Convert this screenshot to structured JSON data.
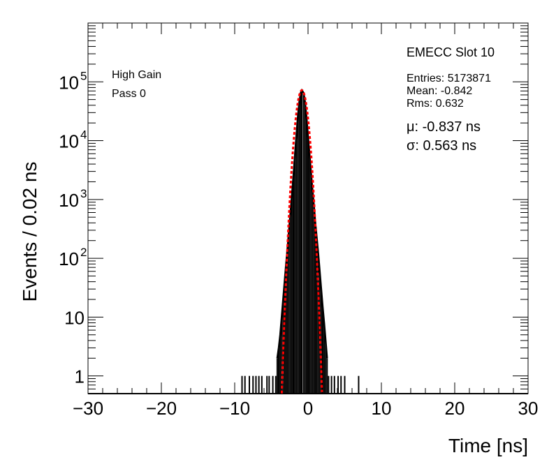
{
  "chart_data": {
    "type": "histogram",
    "ylabel": "Events / 0.02 ns",
    "xlabel": "Time [ns]",
    "xlim": [
      -30,
      30
    ],
    "ylim": [
      0.5,
      1000000
    ],
    "yscale": "log",
    "x_ticks": [
      -30,
      -20,
      -10,
      0,
      10,
      20,
      30
    ],
    "x_tick_labels": [
      "−30",
      "−20",
      "−10",
      "0",
      "10",
      "20",
      "30"
    ],
    "y_ticks": [
      1,
      10,
      100,
      1000,
      10000,
      100000
    ],
    "annotations": {
      "left": [
        "High Gain",
        "Pass 0"
      ],
      "title": "EMECC Slot 10",
      "stats": [
        "Entries: 5173871",
        "Mean: -0.842",
        "Rms: 0.632"
      ],
      "fit": [
        "μ: -0.837 ns",
        "σ: 0.563 ns"
      ]
    },
    "series": [
      {
        "kind": "histogram",
        "color": "#000000",
        "points": [
          [
            -9.0,
            1
          ],
          [
            -8.6,
            1
          ],
          [
            -8.0,
            1
          ],
          [
            -7.5,
            1
          ],
          [
            -7.1,
            1
          ],
          [
            -6.7,
            1
          ],
          [
            -6.3,
            1
          ],
          [
            -5.6,
            1
          ],
          [
            -5.3,
            1
          ],
          [
            -4.8,
            1
          ],
          [
            -4.4,
            1
          ],
          [
            -4.2,
            2
          ],
          [
            -4.0,
            3
          ],
          [
            -3.8,
            5
          ],
          [
            -3.6,
            10
          ],
          [
            -3.4,
            20
          ],
          [
            -3.2,
            40
          ],
          [
            -3.0,
            80
          ],
          [
            -2.8,
            150
          ],
          [
            -2.6,
            300
          ],
          [
            -2.4,
            600
          ],
          [
            -2.2,
            1200
          ],
          [
            -2.0,
            2500
          ],
          [
            -1.8,
            5500
          ],
          [
            -1.6,
            12000
          ],
          [
            -1.4,
            25000
          ],
          [
            -1.2,
            45000
          ],
          [
            -1.0,
            65000
          ],
          [
            -0.84,
            72000
          ],
          [
            -0.6,
            65000
          ],
          [
            -0.4,
            45000
          ],
          [
            -0.2,
            25000
          ],
          [
            0.0,
            12000
          ],
          [
            0.2,
            6000
          ],
          [
            0.4,
            3000
          ],
          [
            0.6,
            1500
          ],
          [
            0.8,
            800
          ],
          [
            1.0,
            400
          ],
          [
            1.2,
            220
          ],
          [
            1.4,
            120
          ],
          [
            1.6,
            60
          ],
          [
            1.8,
            30
          ],
          [
            2.0,
            15
          ],
          [
            2.2,
            8
          ],
          [
            2.4,
            4
          ],
          [
            2.6,
            2
          ],
          [
            2.8,
            1
          ],
          [
            3.2,
            1
          ],
          [
            3.6,
            1
          ],
          [
            4.1,
            1
          ],
          [
            4.5,
            1
          ],
          [
            5.0,
            1
          ],
          [
            6.9,
            1
          ]
        ]
      },
      {
        "kind": "gaussian_fit",
        "color": "#ff0000",
        "mu": -0.837,
        "sigma": 0.563,
        "peak": 72000,
        "fit_range": [
          -1.8,
          0.2
        ]
      }
    ]
  }
}
